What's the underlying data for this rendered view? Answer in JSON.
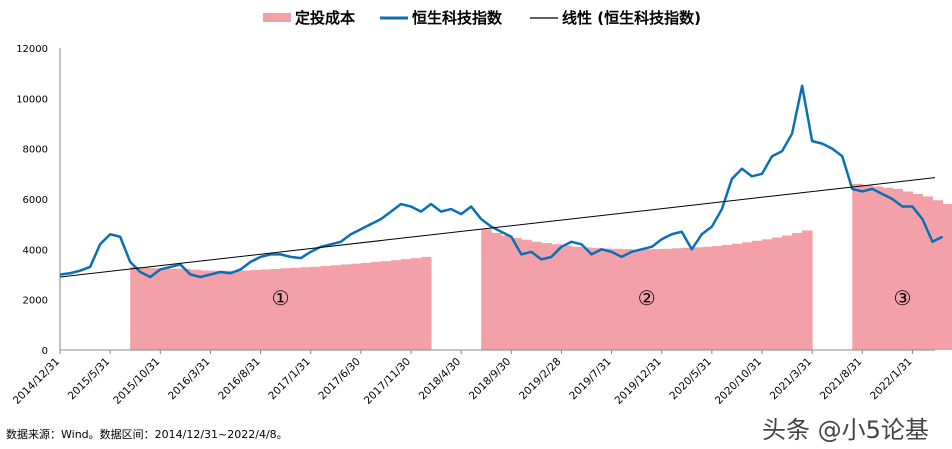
{
  "chart_data": {
    "type": "line",
    "legend": [
      "定投成本",
      "恒生科技指数",
      "线性 (恒生科技指数)"
    ],
    "legend_position": "top",
    "colors": {
      "cost": "#f4a0a8",
      "index": "#0a6fb4",
      "trend": "#000000"
    },
    "ylim": [
      0,
      12000
    ],
    "yticks": [
      "0",
      "2000",
      "4000",
      "6000",
      "8000",
      "10000",
      "12000"
    ],
    "xrange": [
      "2014/12",
      "2022/4"
    ],
    "xticks": [
      "2014/12/31",
      "2015/5/31",
      "2015/10/31",
      "2016/3/31",
      "2016/8/31",
      "2017/1/31",
      "2017/6/30",
      "2017/11/30",
      "2018/4/30",
      "2018/9/30",
      "2019/2/28",
      "2019/7/31",
      "2019/12/31",
      "2020/5/31",
      "2020/10/31",
      "2021/3/31",
      "2021/8/31",
      "2022/1/31"
    ],
    "grid": false,
    "index_series": {
      "name": "恒生科技指数",
      "start": "2014/12",
      "values": [
        3000,
        3050,
        3150,
        3300,
        4200,
        4600,
        4500,
        3500,
        3100,
        2900,
        3200,
        3300,
        3400,
        3000,
        2900,
        3000,
        3100,
        3050,
        3200,
        3500,
        3700,
        3800,
        3800,
        3700,
        3650,
        3900,
        4100,
        4200,
        4300,
        4600,
        4800,
        5000,
        5200,
        5500,
        5800,
        5700,
        5500,
        5800,
        5500,
        5600,
        5400,
        5700,
        5200,
        4900,
        4700,
        4500,
        3800,
        3900,
        3600,
        3700,
        4100,
        4300,
        4200,
        3800,
        4000,
        3900,
        3700,
        3900,
        4000,
        4100,
        4400,
        4600,
        4700,
        4000,
        4600,
        4900,
        5600,
        6800,
        7200,
        6900,
        7000,
        7700,
        7900,
        8600,
        10500,
        8300,
        8200,
        8000,
        7700,
        6400,
        6300,
        6400,
        6200,
        6000,
        5700,
        5700,
        5200,
        4300,
        4500
      ]
    },
    "cost_series": {
      "name": "定投成本",
      "segments": [
        {
          "label": "①",
          "start": "2015/7",
          "values": [
            3300,
            3280,
            3250,
            3240,
            3230,
            3220,
            3190,
            3160,
            3150,
            3150,
            3150,
            3160,
            3180,
            3200,
            3220,
            3250,
            3270,
            3290,
            3310,
            3340,
            3370,
            3400,
            3430,
            3460,
            3500,
            3530,
            3570,
            3610,
            3650,
            3700
          ]
        },
        {
          "label": "②",
          "start": "2018/6",
          "values": [
            4800,
            4650,
            4550,
            4450,
            4380,
            4300,
            4250,
            4200,
            4150,
            4100,
            4080,
            4050,
            4030,
            4020,
            4010,
            4000,
            4000,
            4010,
            4020,
            4040,
            4060,
            4080,
            4100,
            4130,
            4170,
            4220,
            4280,
            4340,
            4400,
            4470,
            4550,
            4650,
            4750
          ]
        },
        {
          "label": "③",
          "start": "2021/7",
          "values": [
            6600,
            6550,
            6500,
            6450,
            6400,
            6300,
            6200,
            6100,
            5950,
            5800
          ]
        }
      ]
    },
    "trend": {
      "name": "线性 (恒生科技指数)",
      "start_value": 2900,
      "end_value": 6850
    }
  },
  "footer": "数据来源：Wind。数据区间：2014/12/31~2022/4/8。",
  "watermark": "头条 @小5论基"
}
